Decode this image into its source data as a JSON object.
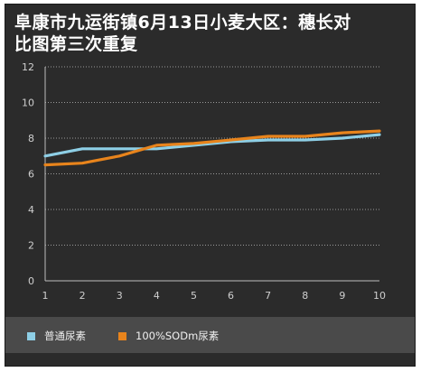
{
  "title": {
    "line1": "阜康市九运街镇6月13日小麦大区：穗长对",
    "line2": "比图第三次重复"
  },
  "chart_data": {
    "type": "line",
    "x": [
      1,
      2,
      3,
      4,
      5,
      6,
      7,
      8,
      9,
      10
    ],
    "series": [
      {
        "name": "普通尿素",
        "values": [
          7.0,
          7.4,
          7.4,
          7.4,
          7.6,
          7.8,
          7.9,
          7.9,
          8.0,
          8.2
        ],
        "color": "#8ecfe6"
      },
      {
        "name": "100%SODm尿素",
        "values": [
          6.5,
          6.6,
          7.0,
          7.6,
          7.7,
          7.9,
          8.1,
          8.1,
          8.3,
          8.4
        ],
        "color": "#e8841c"
      }
    ],
    "yticks": [
      0,
      2,
      4,
      6,
      8,
      10,
      12
    ],
    "ylim": [
      0,
      12
    ],
    "xlim": [
      1,
      10
    ],
    "grid": true,
    "legend_position": "bottom"
  }
}
